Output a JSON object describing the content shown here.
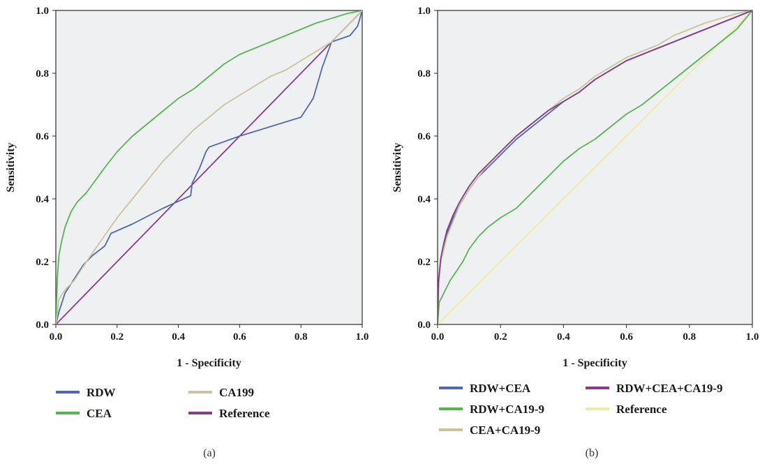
{
  "chart_data": [
    {
      "type": "line",
      "panel_label": "(a)",
      "xlabel": "1 - Specificity",
      "ylabel": "Sensitivity",
      "xlim": [
        0.0,
        1.0
      ],
      "ylim": [
        0.0,
        1.0
      ],
      "xticks": [
        "0.0",
        "0.2",
        "0.4",
        "0.6",
        "0.8",
        "1.0"
      ],
      "yticks": [
        "0.0",
        "0.2",
        "0.4",
        "0.6",
        "0.8",
        "1.0"
      ],
      "grid": false,
      "background": "#eff0f2",
      "legend_columns": 2,
      "series": [
        {
          "name": "RDW",
          "color": "#4e69b0",
          "x": [
            0,
            0.01,
            0.03,
            0.05,
            0.07,
            0.09,
            0.12,
            0.16,
            0.18,
            0.25,
            0.35,
            0.44,
            0.445,
            0.47,
            0.49,
            0.5,
            0.6,
            0.7,
            0.8,
            0.84,
            0.87,
            0.9,
            0.93,
            0.96,
            0.985,
            1.0
          ],
          "y": [
            0,
            0.04,
            0.1,
            0.13,
            0.16,
            0.19,
            0.22,
            0.25,
            0.29,
            0.32,
            0.37,
            0.41,
            0.45,
            0.5,
            0.55,
            0.565,
            0.6,
            0.63,
            0.66,
            0.72,
            0.82,
            0.9,
            0.91,
            0.92,
            0.95,
            1.0
          ]
        },
        {
          "name": "CEA",
          "color": "#52b84e",
          "x": [
            0,
            0.005,
            0.01,
            0.02,
            0.03,
            0.05,
            0.07,
            0.1,
            0.13,
            0.16,
            0.2,
            0.25,
            0.3,
            0.35,
            0.4,
            0.45,
            0.5,
            0.55,
            0.6,
            0.65,
            0.7,
            0.75,
            0.8,
            0.85,
            0.9,
            0.95,
            1.0
          ],
          "y": [
            0,
            0.15,
            0.22,
            0.27,
            0.31,
            0.36,
            0.39,
            0.42,
            0.46,
            0.5,
            0.55,
            0.6,
            0.64,
            0.68,
            0.72,
            0.75,
            0.79,
            0.83,
            0.86,
            0.88,
            0.9,
            0.92,
            0.94,
            0.96,
            0.975,
            0.99,
            1.0
          ]
        },
        {
          "name": "CA199",
          "color": "#c9c49c",
          "x": [
            0,
            0.01,
            0.03,
            0.06,
            0.1,
            0.15,
            0.2,
            0.25,
            0.3,
            0.35,
            0.4,
            0.45,
            0.5,
            0.55,
            0.6,
            0.65,
            0.7,
            0.75,
            0.8,
            0.85,
            0.9,
            0.95,
            1.0
          ],
          "y": [
            0,
            0.08,
            0.11,
            0.14,
            0.2,
            0.27,
            0.34,
            0.4,
            0.46,
            0.52,
            0.57,
            0.62,
            0.66,
            0.7,
            0.73,
            0.76,
            0.79,
            0.81,
            0.84,
            0.87,
            0.9,
            0.95,
            1.0
          ]
        },
        {
          "name": "Reference",
          "color": "#8a3a86",
          "x": [
            0,
            1
          ],
          "y": [
            0,
            1
          ]
        }
      ]
    },
    {
      "type": "line",
      "panel_label": "(b)",
      "xlabel": "1 - Specificity",
      "ylabel": "Sensitivity",
      "xlim": [
        0.0,
        1.0
      ],
      "ylim": [
        0.0,
        1.0
      ],
      "xticks": [
        "0.0",
        "0.2",
        "0.4",
        "0.6",
        "0.8",
        "1.0"
      ],
      "yticks": [
        "0.0",
        "0.2",
        "0.4",
        "0.6",
        "0.8",
        "1.0"
      ],
      "grid": false,
      "background": "#eff0f2",
      "legend_columns": 2,
      "series": [
        {
          "name": "RDW+CEA",
          "color": "#4e69b0",
          "x": [
            0,
            0.003,
            0.01,
            0.02,
            0.03,
            0.05,
            0.07,
            0.1,
            0.13,
            0.16,
            0.2,
            0.25,
            0.3,
            0.35,
            0.4,
            0.45,
            0.5,
            0.55,
            0.6,
            0.65,
            0.7,
            0.75,
            0.8,
            0.85,
            0.9,
            0.95,
            1.0
          ],
          "y": [
            0,
            0.13,
            0.2,
            0.25,
            0.29,
            0.34,
            0.38,
            0.43,
            0.47,
            0.5,
            0.54,
            0.59,
            0.63,
            0.67,
            0.71,
            0.74,
            0.78,
            0.81,
            0.84,
            0.86,
            0.88,
            0.9,
            0.92,
            0.94,
            0.96,
            0.98,
            1.0
          ]
        },
        {
          "name": "RDW+CA19-9",
          "color": "#52b84e",
          "x": [
            0,
            0.005,
            0.02,
            0.04,
            0.06,
            0.08,
            0.1,
            0.13,
            0.16,
            0.2,
            0.25,
            0.3,
            0.35,
            0.4,
            0.45,
            0.5,
            0.55,
            0.6,
            0.65,
            0.7,
            0.75,
            0.8,
            0.85,
            0.9,
            0.95,
            1.0
          ],
          "y": [
            0,
            0.07,
            0.1,
            0.14,
            0.17,
            0.2,
            0.24,
            0.28,
            0.31,
            0.34,
            0.37,
            0.42,
            0.47,
            0.52,
            0.56,
            0.59,
            0.63,
            0.67,
            0.7,
            0.74,
            0.78,
            0.82,
            0.86,
            0.9,
            0.94,
            1.0
          ]
        },
        {
          "name": "CEA+CA19-9",
          "color": "#c9c49c",
          "x": [
            0,
            0.003,
            0.01,
            0.02,
            0.03,
            0.05,
            0.07,
            0.1,
            0.13,
            0.16,
            0.2,
            0.25,
            0.3,
            0.35,
            0.4,
            0.45,
            0.5,
            0.55,
            0.6,
            0.65,
            0.7,
            0.75,
            0.8,
            0.85,
            0.9,
            0.95,
            1.0
          ],
          "y": [
            0,
            0.13,
            0.2,
            0.24,
            0.28,
            0.33,
            0.38,
            0.43,
            0.47,
            0.51,
            0.55,
            0.6,
            0.64,
            0.68,
            0.72,
            0.75,
            0.79,
            0.82,
            0.85,
            0.87,
            0.89,
            0.92,
            0.94,
            0.96,
            0.975,
            0.99,
            1.0
          ]
        },
        {
          "name": "RDW+CEA+CA19-9",
          "color": "#8a3a86",
          "x": [
            0,
            0.003,
            0.01,
            0.02,
            0.03,
            0.05,
            0.07,
            0.1,
            0.13,
            0.16,
            0.2,
            0.25,
            0.3,
            0.35,
            0.4,
            0.45,
            0.5,
            0.55,
            0.6,
            0.65,
            0.7,
            0.75,
            0.8,
            0.85,
            0.9,
            0.95,
            1.0
          ],
          "y": [
            0,
            0.14,
            0.21,
            0.26,
            0.3,
            0.35,
            0.39,
            0.44,
            0.48,
            0.51,
            0.55,
            0.6,
            0.64,
            0.68,
            0.71,
            0.74,
            0.78,
            0.81,
            0.84,
            0.86,
            0.88,
            0.9,
            0.92,
            0.94,
            0.96,
            0.98,
            1.0
          ]
        },
        {
          "name": "Reference",
          "color": "#f0eba0",
          "x": [
            0,
            1
          ],
          "y": [
            0,
            1
          ]
        }
      ]
    }
  ]
}
